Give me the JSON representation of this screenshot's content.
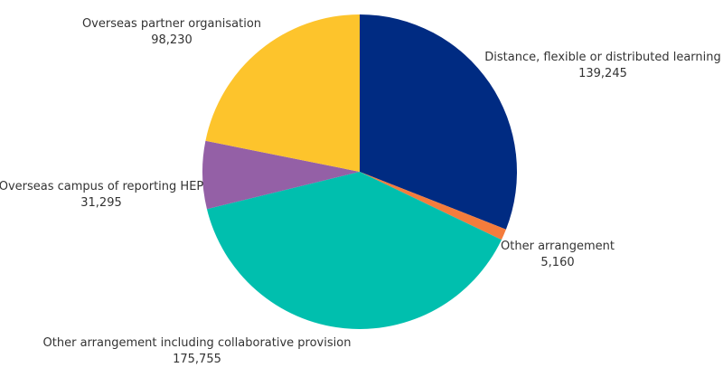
{
  "chart_data": {
    "type": "pie",
    "title": "",
    "legend": "none",
    "slices": [
      {
        "label": "Distance, flexible or distributed learning",
        "value": 139245,
        "value_label": "139,245",
        "color": "#002b82"
      },
      {
        "label": "Other arrangement",
        "value": 5160,
        "value_label": "5,160",
        "color": "#f47c3c"
      },
      {
        "label": "Other arrangement including collaborative provision",
        "value": 175755,
        "value_label": "175,755",
        "color": "#00bfae"
      },
      {
        "label": "Overseas campus of reporting HEP",
        "value": 31295,
        "value_label": "31,295",
        "color": "#9460a6"
      },
      {
        "label": "Overseas partner organisation",
        "value": 98230,
        "value_label": "98,230",
        "color": "#fdc42c"
      }
    ]
  }
}
